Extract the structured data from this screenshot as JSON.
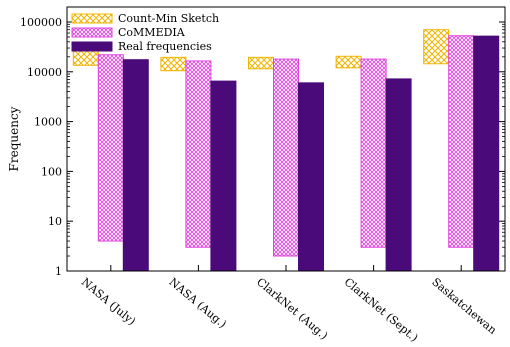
{
  "chart_data": {
    "type": "bar",
    "ylabel": "Frequency",
    "yscale": "log",
    "ylim": [
      1,
      200000
    ],
    "yticks": [
      "1",
      "10",
      "100",
      "1000",
      "10000",
      "100000"
    ],
    "categories": [
      "NASA (July)",
      "NASA (Aug.)",
      "ClarkNet (Aug.)",
      "ClarkNet (Sept.)",
      "Saskatchewan"
    ],
    "legend_position": "top-left",
    "series": [
      {
        "name": "Count-Min Sketch",
        "kind": "range",
        "color": "#f0b400",
        "pattern": "crosshatch",
        "low": [
          13500,
          10500,
          11500,
          12000,
          14500
        ],
        "high": [
          33000,
          19500,
          19500,
          20500,
          70000
        ]
      },
      {
        "name": "CoMMEDIA",
        "kind": "range",
        "color": "#e040e0",
        "pattern": "crosshatch",
        "low": [
          4,
          3,
          2,
          3,
          3
        ],
        "high": [
          22000,
          16500,
          18000,
          18000,
          53000
        ]
      },
      {
        "name": "Real frequencies",
        "kind": "bar",
        "color": "#4b0a7a",
        "values": [
          17500,
          6500,
          6000,
          7200,
          52000
        ]
      }
    ]
  }
}
